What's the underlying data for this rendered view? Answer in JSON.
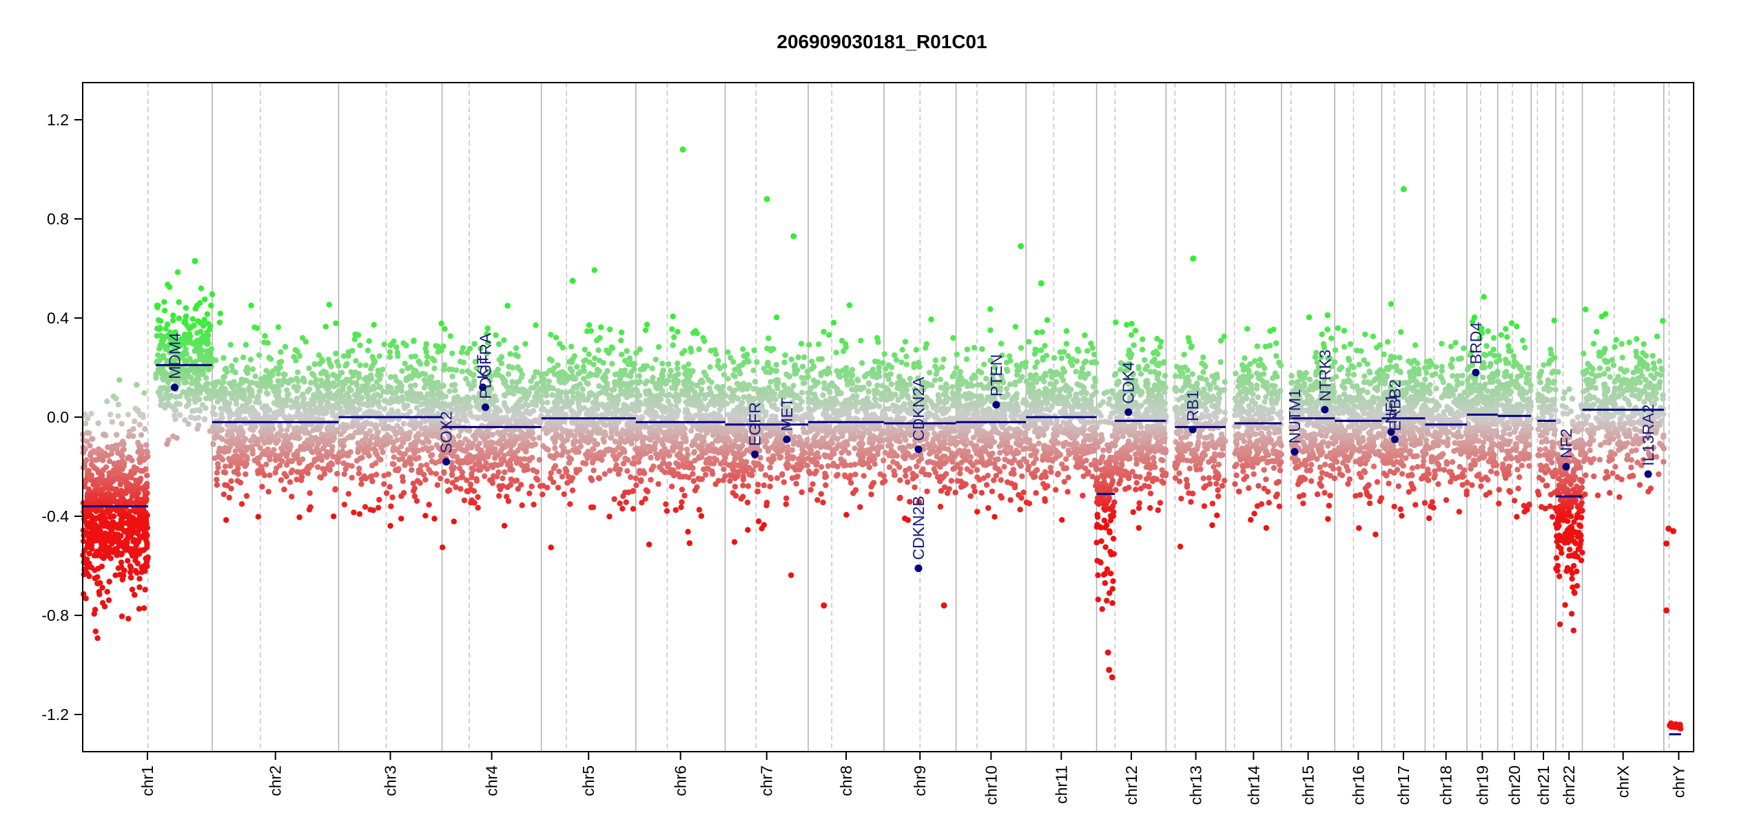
{
  "chart_data": {
    "type": "scatter",
    "title": "206909030181_R01C01",
    "xlabel": "",
    "ylabel": "",
    "ylim": [
      -1.35,
      1.35
    ],
    "yticks": [
      1.2,
      0.8,
      0.4,
      0.0,
      -0.4,
      -0.8,
      -1.2
    ],
    "grid": false,
    "colors": {
      "gain": "#33ee33",
      "loss": "#ee1111",
      "neutral": "#cccccc",
      "segment": "#000080",
      "gene": "#000080",
      "boundary": "#b0b0b0",
      "centromere": "#c4c4c4"
    },
    "chromosomes": [
      {
        "name": "chr1",
        "start": 0,
        "end": 248,
        "centromere": 125
      },
      {
        "name": "chr2",
        "start": 248,
        "end": 490,
        "centromere": 340
      },
      {
        "name": "chr3",
        "start": 490,
        "end": 688,
        "centromere": 581
      },
      {
        "name": "chr4",
        "start": 688,
        "end": 878,
        "centromere": 740
      },
      {
        "name": "chr5",
        "start": 878,
        "end": 1059,
        "centromere": 926
      },
      {
        "name": "chr6",
        "start": 1059,
        "end": 1230,
        "centromere": 1119
      },
      {
        "name": "chr7",
        "start": 1230,
        "end": 1389,
        "centromere": 1289
      },
      {
        "name": "chr8",
        "start": 1389,
        "end": 1534,
        "centromere": 1434
      },
      {
        "name": "chr9",
        "start": 1534,
        "end": 1672,
        "centromere": 1603
      },
      {
        "name": "chr10",
        "start": 1672,
        "end": 1806,
        "centromere": 1712
      },
      {
        "name": "chr11",
        "start": 1806,
        "end": 1941,
        "centromere": 1859
      },
      {
        "name": "chr12",
        "start": 1941,
        "end": 2074,
        "centromere": 1976
      },
      {
        "name": "chr13",
        "start": 2074,
        "end": 2188,
        "centromere": 2091
      },
      {
        "name": "chr14",
        "start": 2188,
        "end": 2295,
        "centromere": 2205
      },
      {
        "name": "chr15",
        "start": 2295,
        "end": 2397,
        "centromere": 2313
      },
      {
        "name": "chr16",
        "start": 2397,
        "end": 2487,
        "centromere": 2433
      },
      {
        "name": "chr17",
        "start": 2487,
        "end": 2570,
        "centromere": 2511
      },
      {
        "name": "chr18",
        "start": 2570,
        "end": 2650,
        "centromere": 2587
      },
      {
        "name": "chr19",
        "start": 2650,
        "end": 2709,
        "centromere": 2676
      },
      {
        "name": "chr20",
        "start": 2709,
        "end": 2773,
        "centromere": 2737
      },
      {
        "name": "chr21",
        "start": 2773,
        "end": 2820,
        "centromere": 2785
      },
      {
        "name": "chr22",
        "start": 2820,
        "end": 2871,
        "centromere": 2834
      },
      {
        "name": "chrX",
        "start": 2871,
        "end": 3027,
        "centromere": 2932
      },
      {
        "name": "chrY",
        "start": 3027,
        "end": 3084,
        "centromere": 3037
      }
    ],
    "segments": [
      {
        "chr": "chr1",
        "x0": 0,
        "x1": 125,
        "y": -0.36
      },
      {
        "chr": "chr1",
        "x0": 140,
        "x1": 248,
        "y": 0.21
      },
      {
        "chr": "chr2",
        "x0": 248,
        "x1": 490,
        "y": -0.02
      },
      {
        "chr": "chr3",
        "x0": 490,
        "x1": 688,
        "y": 0.0
      },
      {
        "chr": "chr4",
        "x0": 688,
        "x1": 878,
        "y": -0.04
      },
      {
        "chr": "chr5",
        "x0": 878,
        "x1": 1059,
        "y": -0.005
      },
      {
        "chr": "chr6",
        "x0": 1059,
        "x1": 1230,
        "y": -0.02
      },
      {
        "chr": "chr7",
        "x0": 1230,
        "x1": 1389,
        "y": -0.03
      },
      {
        "chr": "chr8",
        "x0": 1389,
        "x1": 1534,
        "y": -0.02
      },
      {
        "chr": "chr9",
        "x0": 1534,
        "x1": 1672,
        "y": -0.025
      },
      {
        "chr": "chr10",
        "x0": 1672,
        "x1": 1806,
        "y": -0.02
      },
      {
        "chr": "chr11",
        "x0": 1806,
        "x1": 1941,
        "y": 0.0
      },
      {
        "chr": "chr12",
        "x0": 1941,
        "x1": 1976,
        "y": -0.31
      },
      {
        "chr": "chr12",
        "x0": 1976,
        "x1": 2074,
        "y": -0.015
      },
      {
        "chr": "chr13",
        "x0": 2091,
        "x1": 2188,
        "y": -0.04
      },
      {
        "chr": "chr14",
        "x0": 2205,
        "x1": 2295,
        "y": -0.025
      },
      {
        "chr": "chr15",
        "x0": 2313,
        "x1": 2397,
        "y": -0.005
      },
      {
        "chr": "chr16",
        "x0": 2397,
        "x1": 2487,
        "y": -0.015
      },
      {
        "chr": "chr17",
        "x0": 2487,
        "x1": 2570,
        "y": -0.005
      },
      {
        "chr": "chr18",
        "x0": 2570,
        "x1": 2650,
        "y": -0.03
      },
      {
        "chr": "chr19",
        "x0": 2650,
        "x1": 2709,
        "y": 0.01
      },
      {
        "chr": "chr20",
        "x0": 2709,
        "x1": 2773,
        "y": 0.005
      },
      {
        "chr": "chr21",
        "x0": 2785,
        "x1": 2820,
        "y": -0.015
      },
      {
        "chr": "chr22",
        "x0": 2820,
        "x1": 2871,
        "y": -0.32
      },
      {
        "chr": "chrX",
        "x0": 2871,
        "x1": 3027,
        "y": 0.03
      },
      {
        "chr": "chrY",
        "x0": 3037,
        "x1": 3060,
        "y": -1.28
      }
    ],
    "noise": [
      {
        "x0": 0,
        "x1": 125,
        "mean": -0.36,
        "sd": 0.17,
        "n": 750
      },
      {
        "x0": 140,
        "x1": 248,
        "mean": 0.21,
        "sd": 0.12,
        "n": 360
      },
      {
        "x0": 248,
        "x1": 490,
        "mean": -0.02,
        "sd": 0.14,
        "n": 850
      },
      {
        "x0": 490,
        "x1": 688,
        "mean": 0.0,
        "sd": 0.14,
        "n": 680
      },
      {
        "x0": 688,
        "x1": 878,
        "mean": -0.04,
        "sd": 0.14,
        "n": 620
      },
      {
        "x0": 878,
        "x1": 1059,
        "mean": -0.005,
        "sd": 0.14,
        "n": 620
      },
      {
        "x0": 1059,
        "x1": 1230,
        "mean": -0.02,
        "sd": 0.14,
        "n": 620
      },
      {
        "x0": 1230,
        "x1": 1389,
        "mean": -0.03,
        "sd": 0.14,
        "n": 560
      },
      {
        "x0": 1389,
        "x1": 1534,
        "mean": -0.02,
        "sd": 0.14,
        "n": 480
      },
      {
        "x0": 1534,
        "x1": 1672,
        "mean": -0.025,
        "sd": 0.14,
        "n": 420
      },
      {
        "x0": 1672,
        "x1": 1806,
        "mean": -0.02,
        "sd": 0.14,
        "n": 480
      },
      {
        "x0": 1806,
        "x1": 1941,
        "mean": 0.0,
        "sd": 0.14,
        "n": 480
      },
      {
        "x0": 1941,
        "x1": 1976,
        "mean": -0.31,
        "sd": 0.2,
        "n": 150
      },
      {
        "x0": 1976,
        "x1": 2074,
        "mean": -0.015,
        "sd": 0.14,
        "n": 440
      },
      {
        "x0": 2091,
        "x1": 2188,
        "mean": -0.04,
        "sd": 0.14,
        "n": 320
      },
      {
        "x0": 2205,
        "x1": 2295,
        "mean": -0.025,
        "sd": 0.14,
        "n": 320
      },
      {
        "x0": 2313,
        "x1": 2397,
        "mean": -0.005,
        "sd": 0.14,
        "n": 320
      },
      {
        "x0": 2397,
        "x1": 2487,
        "mean": -0.015,
        "sd": 0.14,
        "n": 320
      },
      {
        "x0": 2487,
        "x1": 2570,
        "mean": -0.005,
        "sd": 0.14,
        "n": 340
      },
      {
        "x0": 2570,
        "x1": 2650,
        "mean": -0.03,
        "sd": 0.14,
        "n": 260
      },
      {
        "x0": 2650,
        "x1": 2709,
        "mean": 0.01,
        "sd": 0.14,
        "n": 280
      },
      {
        "x0": 2709,
        "x1": 2773,
        "mean": 0.005,
        "sd": 0.14,
        "n": 240
      },
      {
        "x0": 2785,
        "x1": 2820,
        "mean": -0.015,
        "sd": 0.14,
        "n": 120
      },
      {
        "x0": 2820,
        "x1": 2871,
        "mean": -0.32,
        "sd": 0.2,
        "n": 260
      },
      {
        "x0": 2871,
        "x1": 3027,
        "mean": 0.03,
        "sd": 0.13,
        "n": 420
      },
      {
        "x0": 3037,
        "x1": 3060,
        "mean": -1.245,
        "sd": 0.004,
        "n": 30
      }
    ],
    "highlight_points": [
      {
        "x": 1149,
        "y": 1.08
      },
      {
        "x": 1310,
        "y": 0.88
      },
      {
        "x": 1361,
        "y": 0.73
      },
      {
        "x": 2529,
        "y": 0.92
      },
      {
        "x": 1796,
        "y": 0.69
      },
      {
        "x": 2126,
        "y": 0.64
      },
      {
        "x": 215,
        "y": 0.63
      },
      {
        "x": 1835,
        "y": 0.54
      },
      {
        "x": 938,
        "y": 0.55
      },
      {
        "x": 1963,
        "y": -0.95
      },
      {
        "x": 1971,
        "y": -1.05
      },
      {
        "x": 1965,
        "y": -1.02
      },
      {
        "x": 1419,
        "y": -0.76
      },
      {
        "x": 1649,
        "y": -0.76
      },
      {
        "x": 3032,
        "y": -0.78
      },
      {
        "x": 3036,
        "y": -0.45
      },
      {
        "x": 3045,
        "y": -0.46
      },
      {
        "x": 3032,
        "y": -0.51
      }
    ],
    "genes": [
      {
        "name": "MDM4",
        "x": 176,
        "y": 0.12
      },
      {
        "name": "KIT",
        "x": 766,
        "y": 0.12
      },
      {
        "name": "PDGFRA",
        "x": 771,
        "y": 0.04
      },
      {
        "name": "SOX2",
        "x": 696,
        "y": -0.18
      },
      {
        "name": "EGFR",
        "x": 1287,
        "y": -0.15
      },
      {
        "name": "MET",
        "x": 1348,
        "y": -0.09
      },
      {
        "name": "CDKN2A",
        "x": 1600,
        "y": -0.13
      },
      {
        "name": "CDKN2B",
        "x": 1600,
        "y": -0.61
      },
      {
        "name": "PTEN",
        "x": 1749,
        "y": 0.05
      },
      {
        "name": "CDK4",
        "x": 2002,
        "y": 0.02
      },
      {
        "name": "RB1",
        "x": 2125,
        "y": -0.05
      },
      {
        "name": "NUTM1",
        "x": 2320,
        "y": -0.14
      },
      {
        "name": "NTRK3",
        "x": 2378,
        "y": 0.03
      },
      {
        "name": "NF1",
        "x": 2505,
        "y": -0.06
      },
      {
        "name": "ERBB2",
        "x": 2512,
        "y": -0.09
      },
      {
        "name": "BRD4",
        "x": 2667,
        "y": 0.18
      },
      {
        "name": "NF2",
        "x": 2840,
        "y": -0.2
      },
      {
        "name": "IL13RA2",
        "x": 2997,
        "y": -0.23
      }
    ]
  }
}
